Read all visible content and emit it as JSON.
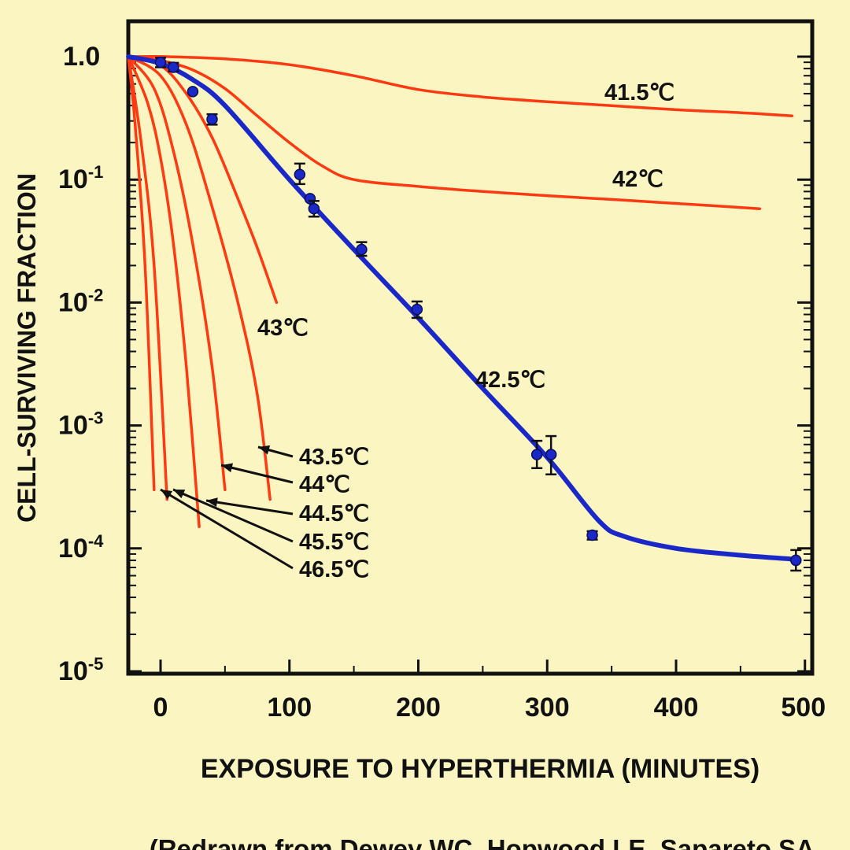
{
  "chart_data": {
    "type": "line",
    "title": "",
    "xlabel": "EXPOSURE TO HYPERTHERMIA (MINUTES)",
    "ylabel": "CELL-SURVIVING FRACTION",
    "xlim": [
      -25,
      500
    ],
    "ylim": [
      1e-05,
      1.0
    ],
    "yscale": "log",
    "grid": false,
    "legend": "none",
    "x_ticks": [
      {
        "value": 0,
        "label": "0"
      },
      {
        "value": 100,
        "label": "100"
      },
      {
        "value": 200,
        "label": "200"
      },
      {
        "value": 300,
        "label": "300"
      },
      {
        "value": 400,
        "label": "400"
      },
      {
        "value": 500,
        "label": "500"
      }
    ],
    "y_ticks": [
      {
        "value": 1.0,
        "mant": "1.0",
        "exp": ""
      },
      {
        "value": 0.1,
        "mant": "10",
        "exp": "-1"
      },
      {
        "value": 0.01,
        "mant": "10",
        "exp": "-2"
      },
      {
        "value": 0.001,
        "mant": "10",
        "exp": "-3"
      },
      {
        "value": 0.0001,
        "mant": "10",
        "exp": "-4"
      },
      {
        "value": 1e-05,
        "mant": "10",
        "exp": "-5"
      }
    ],
    "series": [
      {
        "name": "41.5℃",
        "color": "#ff3a12",
        "x": [
          -25,
          5,
          50,
          100,
          150,
          200,
          250,
          300,
          350,
          400,
          450,
          490
        ],
        "y": [
          1.0,
          1.0,
          0.96,
          0.86,
          0.7,
          0.54,
          0.47,
          0.43,
          0.4,
          0.37,
          0.35,
          0.33
        ]
      },
      {
        "name": "42℃",
        "color": "#ff3a12",
        "x": [
          -25,
          0,
          25,
          50,
          75,
          100,
          125,
          150,
          200,
          250,
          300,
          350,
          400,
          465
        ],
        "y": [
          1.0,
          0.93,
          0.78,
          0.55,
          0.33,
          0.2,
          0.13,
          0.1,
          0.088,
          0.08,
          0.074,
          0.069,
          0.064,
          0.058
        ]
      },
      {
        "name": "43℃",
        "color": "#ff3a12",
        "x": [
          -25,
          0,
          20,
          40,
          60,
          75,
          90
        ],
        "y": [
          1.0,
          0.85,
          0.5,
          0.22,
          0.07,
          0.028,
          0.01
        ]
      },
      {
        "name": "43.5℃",
        "color": "#ff3a12",
        "x": [
          -25,
          0,
          20,
          40,
          60,
          75,
          85
        ],
        "y": [
          1.0,
          0.7,
          0.28,
          0.06,
          0.01,
          0.0018,
          0.00025
        ]
      },
      {
        "name": "44℃",
        "color": "#ff3a12",
        "x": [
          -25,
          -5,
          10,
          25,
          40,
          50
        ],
        "y": [
          1.0,
          0.55,
          0.17,
          0.03,
          0.003,
          0.0003
        ]
      },
      {
        "name": "44.5℃",
        "color": "#ff3a12",
        "x": [
          -25,
          -10,
          0,
          10,
          20,
          30
        ],
        "y": [
          1.0,
          0.42,
          0.15,
          0.03,
          0.003,
          0.00015
        ]
      },
      {
        "name": "45.5℃",
        "color": "#ff3a12",
        "x": [
          -25,
          -15,
          -5,
          5
        ],
        "y": [
          1.0,
          0.2,
          0.02,
          0.00025
        ]
      },
      {
        "name": "46.5℃",
        "color": "#ff3a12",
        "x": [
          -25,
          -20,
          -12,
          -5
        ],
        "y": [
          1.0,
          0.3,
          0.02,
          0.0003
        ]
      },
      {
        "name": "42.5℃",
        "color": "#1a28c8",
        "x": [
          -25,
          0,
          25,
          50,
          100,
          150,
          200,
          250,
          300,
          340,
          360,
          400,
          450,
          490
        ],
        "y": [
          1.0,
          0.88,
          0.65,
          0.4,
          0.1,
          0.027,
          0.0075,
          0.002,
          0.00055,
          0.000168,
          0.000125,
          0.0001,
          8.8e-05,
          8.2e-05
        ]
      }
    ],
    "data_points": {
      "series": "42.5℃",
      "color": "#1a28c8",
      "points": [
        {
          "x": 0,
          "y": 0.9,
          "err": [
            0.82,
            0.98
          ]
        },
        {
          "x": 10,
          "y": 0.82,
          "err": [
            0.76,
            0.89
          ]
        },
        {
          "x": 25,
          "y": 0.52
        },
        {
          "x": 40,
          "y": 0.31,
          "err": [
            0.28,
            0.34
          ]
        },
        {
          "x": 108,
          "y": 0.11,
          "err": [
            0.092,
            0.135
          ]
        },
        {
          "x": 116,
          "y": 0.07
        },
        {
          "x": 119,
          "y": 0.058,
          "err": [
            0.05,
            0.067
          ]
        },
        {
          "x": 156,
          "y": 0.027,
          "err": [
            0.024,
            0.031
          ]
        },
        {
          "x": 199,
          "y": 0.0088,
          "err": [
            0.0075,
            0.0102
          ]
        },
        {
          "x": 292,
          "y": 0.00058,
          "err": [
            0.00045,
            0.00075
          ]
        },
        {
          "x": 303,
          "y": 0.00058,
          "err": [
            0.0004,
            0.00082
          ]
        },
        {
          "x": 335,
          "y": 0.000128,
          "err": [
            0.000118,
            0.000138
          ]
        },
        {
          "x": 493,
          "y": 8e-05,
          "err": [
            6.6e-05,
            9.7e-05
          ]
        }
      ]
    },
    "annotations": [
      {
        "text": "41.5℃",
        "series": "41.5℃"
      },
      {
        "text": "42℃",
        "series": "42℃"
      },
      {
        "text": "43℃",
        "series": "43℃"
      },
      {
        "text": "42.5℃",
        "series": "42.5℃"
      },
      {
        "text": "43.5℃",
        "series": "43.5℃"
      },
      {
        "text": "44℃",
        "series": "44℃"
      },
      {
        "text": "44.5℃",
        "series": "44.5℃"
      },
      {
        "text": "45.5℃",
        "series": "45.5℃"
      },
      {
        "text": "46.5℃",
        "series": "46.5℃"
      }
    ]
  },
  "citation": "(Redrawn from Dewey WC, Hopwood LE, Sapareto SA"
}
